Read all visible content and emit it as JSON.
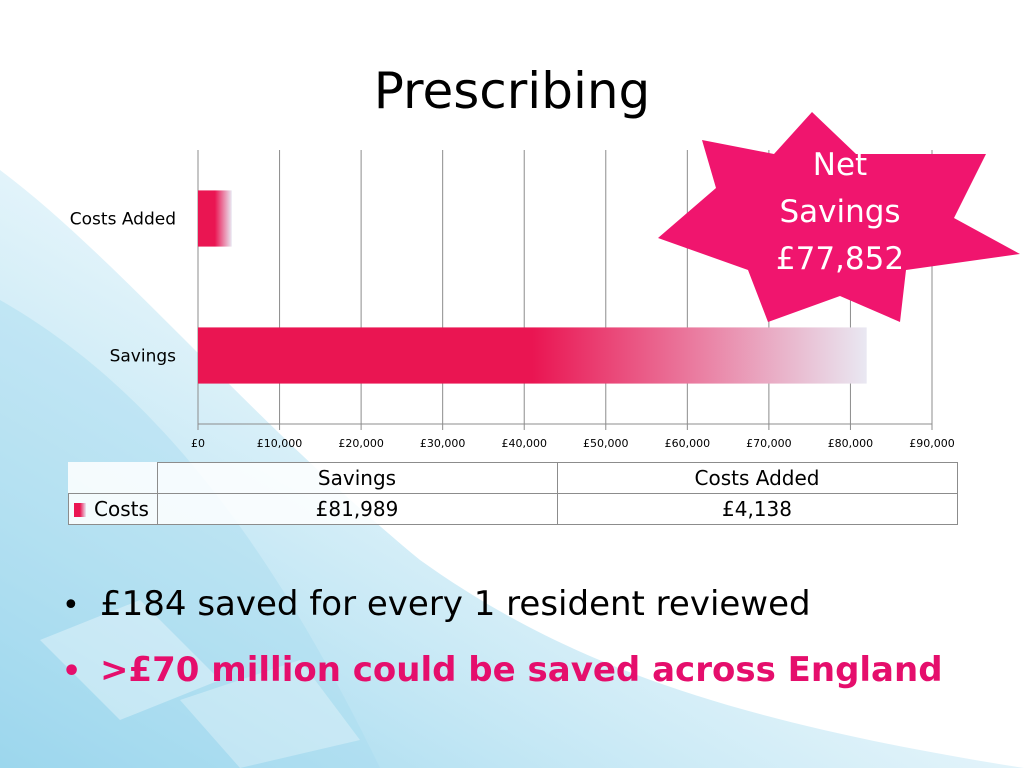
{
  "slide": {
    "title": "Prescribing"
  },
  "callout": {
    "text_lines": [
      "Net",
      "Savings",
      "£77,852"
    ]
  },
  "chart_data": {
    "type": "bar",
    "orientation": "horizontal",
    "categories": [
      "Costs Added",
      "Savings"
    ],
    "values": [
      4138,
      81989
    ],
    "xlim": [
      0,
      90000
    ],
    "xticks": [
      0,
      10000,
      20000,
      30000,
      40000,
      50000,
      60000,
      70000,
      80000,
      90000
    ],
    "xtick_labels": [
      "£0",
      "£10,000",
      "£20,000",
      "£30,000",
      "£40,000",
      "£50,000",
      "£60,000",
      "£70,000",
      "£80,000",
      "£90,000"
    ],
    "grid": true,
    "bar_color": "#ea1552",
    "bar_fade_color": "#e9e8f2"
  },
  "data_table": {
    "columns": [
      "Savings",
      "Costs Added"
    ],
    "row_label": "Costs",
    "row_values": [
      "£81,989",
      "£4,138"
    ]
  },
  "bullets": [
    {
      "text": "£184 saved for every 1 resident reviewed",
      "color": "#000000"
    },
    {
      "text": ">£70 million could be saved across England",
      "color": "#e50e6c"
    }
  ],
  "colors": {
    "accent": "#f0156e",
    "highlight_text": "#e50e6c"
  }
}
